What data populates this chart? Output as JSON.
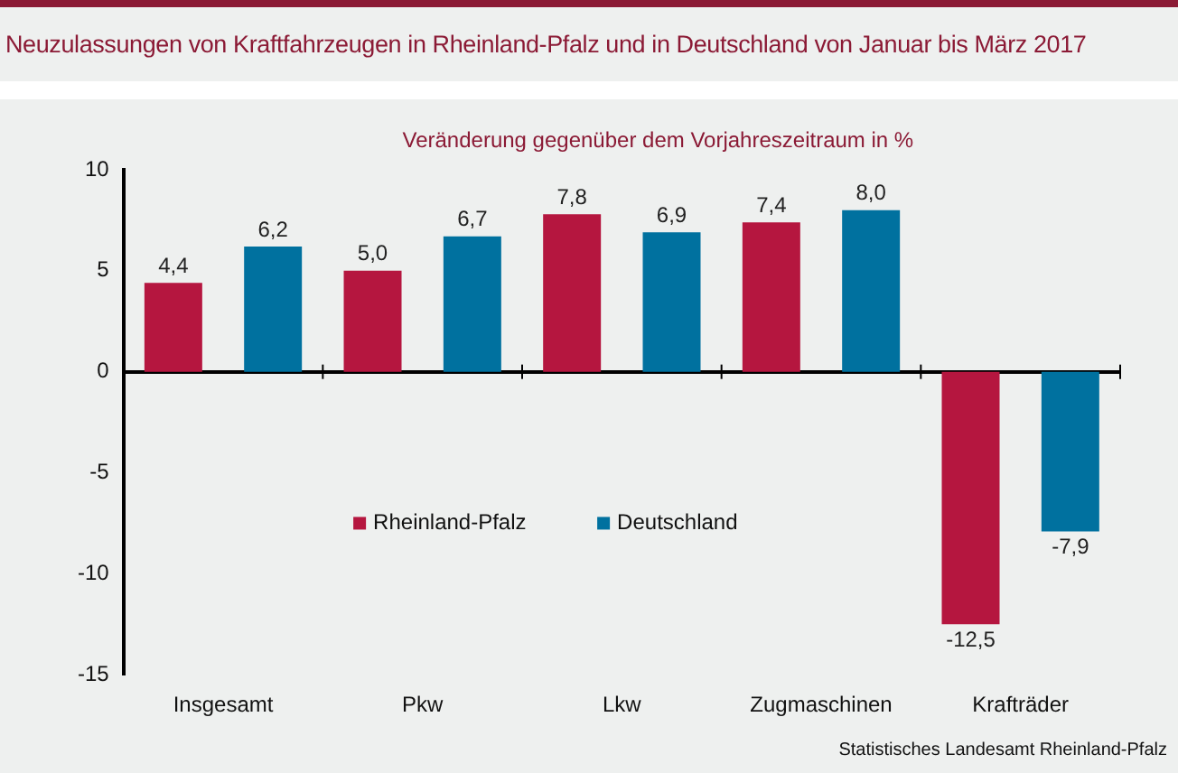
{
  "chart_data": {
    "type": "bar",
    "title": "Neuzulassungen von Kraftfahrzeugen in Rheinland-Pfalz und in Deutschland von Januar bis März 2017",
    "subtitle": "Veränderung gegenüber dem Vorjahreszeitraum in %",
    "categories": [
      "Insgesamt",
      "Pkw",
      "Lkw",
      "Zugmaschinen",
      "Krafträder"
    ],
    "series": [
      {
        "name": "Rheinland-Pfalz",
        "color": "#b5163f",
        "values": [
          4.4,
          5.0,
          7.8,
          7.4,
          -12.5
        ],
        "value_labels": [
          "4,4",
          "5,0",
          "7,8",
          "7,4",
          "-12,5"
        ]
      },
      {
        "name": "Deutschland",
        "color": "#00719f",
        "values": [
          6.2,
          6.7,
          6.9,
          8.0,
          -7.9
        ],
        "value_labels": [
          "6,2",
          "6,7",
          "6,9",
          "8,0",
          "-7,9"
        ]
      }
    ],
    "ylim": [
      -15,
      10
    ],
    "yticks": [
      -15,
      -10,
      -5,
      0,
      5,
      10
    ],
    "legend": "center",
    "annotations": [
      "Statistisches Landesamt Rheinland-Pfalz"
    ]
  }
}
